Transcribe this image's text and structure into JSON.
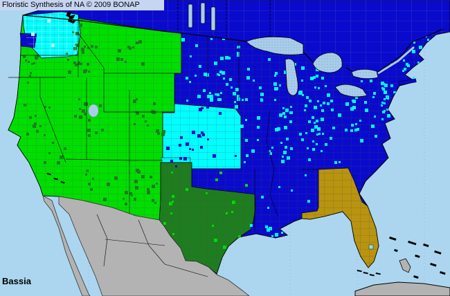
{
  "header": {
    "title": "Floristic Synthesis of NA © 2009 BONAP"
  },
  "taxon": {
    "label": "Bassia"
  },
  "map": {
    "colors": {
      "ocean": "#ACD6EF",
      "absent_blue": "#0A0ACC",
      "present_green": "#00DE00",
      "county_dark_green": "#1E7D1E",
      "adventive_cyan": "#00FFFF",
      "pale_cyan": "#BFFFFF",
      "rare_gold": "#B8940F",
      "unmapped_gray": "#B3B3B3",
      "lake_blue": "#A9CDE9",
      "lake_dot": "#6FA0C4",
      "header_bg": "#C6D6F2",
      "label_text": "#000000"
    }
  }
}
